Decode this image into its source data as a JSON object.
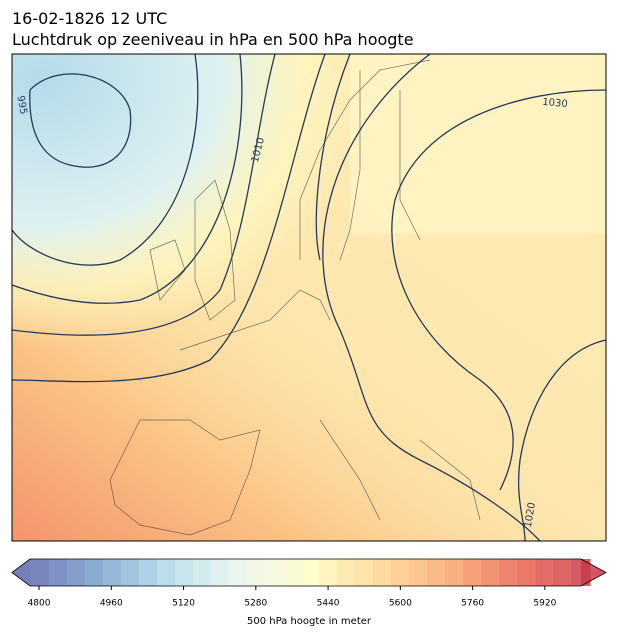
{
  "header": {
    "title_line1": "16-02-1826 12 UTC",
    "title_line2": "Luchtdruk op zeeniveau in hPa en 500 hPa hoogte"
  },
  "contour_labels": [
    "995",
    "1010",
    "1030",
    "1020"
  ],
  "colorbar": {
    "label": "500 hPa hoogte in meter",
    "lim": [
      4780,
      6000
    ],
    "step": 40,
    "ticks": [
      4800,
      4960,
      5120,
      5280,
      5440,
      5600,
      5760,
      5920
    ],
    "colors": [
      "#5e68ad",
      "#7aa3cc",
      "#b4dbea",
      "#e9f6ec",
      "#fdfcc1",
      "#fdd68f",
      "#f9a66a",
      "#e8654f",
      "#c73b4c"
    ]
  }
}
